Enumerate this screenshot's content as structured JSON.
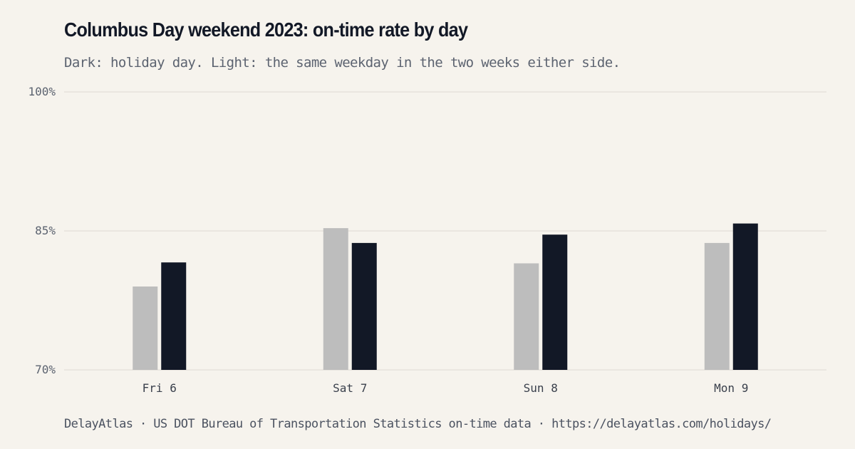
{
  "header": {
    "title": "Columbus Day weekend 2023: on-time rate by day",
    "subtitle": "Dark: holiday day. Light: the same weekday in the two weeks either side."
  },
  "footer": {
    "source": "DelayAtlas · US DOT Bureau of Transportation Statistics on-time data · https://delayatlas.com/holidays/"
  },
  "colors": {
    "background": "#f6f3ed",
    "baseline_bar": "#bdbdbd",
    "holiday_bar": "#121826",
    "grid": "#e6e2db"
  },
  "chart_data": {
    "type": "bar",
    "categories": [
      "Fri 6",
      "Sat 7",
      "Sun 8",
      "Mon 9"
    ],
    "series": [
      {
        "key": "baseline",
        "color": "#bdbdbd",
        "values": [
          79.0,
          85.3,
          81.5,
          83.7
        ]
      },
      {
        "key": "holiday",
        "color": "#121826",
        "values": [
          81.6,
          83.7,
          84.6,
          85.8
        ]
      }
    ],
    "ylim": [
      70,
      100
    ],
    "yticks": [
      70,
      85,
      100
    ],
    "ytick_labels": [
      "70%",
      "85%",
      "100%"
    ],
    "grid": true,
    "legend": "none (described in subtitle)"
  }
}
